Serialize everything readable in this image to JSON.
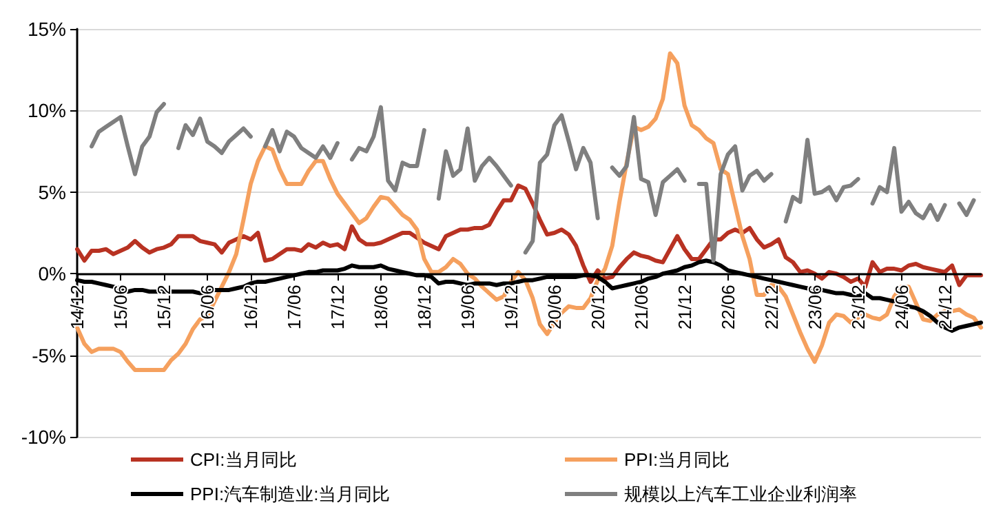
{
  "chart_data": {
    "type": "line",
    "categories": [
      "14/12",
      null,
      null,
      null,
      null,
      null,
      "15/06",
      null,
      null,
      null,
      null,
      null,
      "15/12",
      null,
      null,
      null,
      null,
      null,
      "16/06",
      null,
      null,
      null,
      null,
      null,
      "16/12",
      null,
      null,
      null,
      null,
      null,
      "17/06",
      null,
      null,
      null,
      null,
      null,
      "17/12",
      null,
      null,
      null,
      null,
      null,
      "18/06",
      null,
      null,
      null,
      null,
      null,
      "18/12",
      null,
      null,
      null,
      null,
      null,
      "19/06",
      null,
      null,
      null,
      null,
      null,
      "19/12",
      null,
      null,
      null,
      null,
      null,
      "20/06",
      null,
      null,
      null,
      null,
      null,
      "20/12",
      null,
      null,
      null,
      null,
      null,
      "21/06",
      null,
      null,
      null,
      null,
      null,
      "21/12",
      null,
      null,
      null,
      null,
      null,
      "22/06",
      null,
      null,
      null,
      null,
      null,
      "22/12",
      null,
      null,
      null,
      null,
      null,
      "23/06",
      null,
      null,
      null,
      null,
      null,
      "23/12",
      null,
      null,
      null,
      null,
      null,
      "24/06",
      null,
      null,
      null,
      null,
      null,
      "24/12",
      null,
      null,
      null,
      null,
      null
    ],
    "series": [
      {
        "name": "CPI:当月同比",
        "color": "#b83222",
        "values": [
          1.5,
          0.8,
          1.4,
          1.4,
          1.5,
          1.2,
          1.4,
          1.6,
          2.0,
          1.6,
          1.3,
          1.5,
          1.6,
          1.8,
          2.3,
          2.3,
          2.3,
          2.0,
          1.9,
          1.8,
          1.3,
          1.9,
          2.1,
          2.3,
          2.1,
          2.5,
          0.8,
          0.9,
          1.2,
          1.5,
          1.5,
          1.4,
          1.8,
          1.6,
          1.9,
          1.7,
          1.8,
          1.5,
          2.9,
          2.1,
          1.8,
          1.8,
          1.9,
          2.1,
          2.3,
          2.5,
          2.5,
          2.2,
          1.9,
          1.7,
          1.5,
          2.3,
          2.5,
          2.7,
          2.7,
          2.8,
          2.8,
          3.0,
          3.8,
          4.5,
          4.5,
          5.4,
          5.2,
          4.3,
          3.3,
          2.4,
          2.5,
          2.7,
          2.4,
          1.7,
          0.5,
          -0.5,
          0.2,
          -0.3,
          -0.2,
          0.4,
          0.9,
          1.3,
          1.1,
          1.0,
          0.8,
          0.7,
          1.5,
          2.3,
          1.5,
          0.9,
          0.9,
          1.5,
          2.1,
          2.1,
          2.5,
          2.7,
          2.5,
          2.8,
          2.1,
          1.6,
          1.8,
          2.1,
          1.0,
          0.7,
          0.1,
          0.2,
          0.0,
          -0.3,
          0.1,
          0.0,
          -0.2,
          -0.5,
          -0.3,
          -0.8,
          0.7,
          0.1,
          0.3,
          0.3,
          0.2,
          0.5,
          0.6,
          0.4,
          0.3,
          0.2,
          0.1,
          0.5,
          -0.7,
          -0.1,
          -0.1,
          -0.1
        ]
      },
      {
        "name": "PPI:当月同比",
        "color": "#f5a05e",
        "values": [
          -3.3,
          -4.3,
          -4.8,
          -4.6,
          -4.6,
          -4.6,
          -4.8,
          -5.4,
          -5.9,
          -5.9,
          -5.9,
          -5.9,
          -5.9,
          -5.3,
          -4.9,
          -4.3,
          -3.4,
          -2.8,
          -2.6,
          -1.7,
          -0.8,
          0.1,
          1.2,
          3.3,
          5.5,
          6.9,
          7.8,
          7.6,
          6.4,
          5.5,
          5.5,
          5.5,
          6.3,
          6.9,
          6.9,
          5.8,
          4.9,
          4.3,
          3.7,
          3.1,
          3.4,
          4.1,
          4.7,
          4.6,
          4.1,
          3.6,
          3.3,
          2.7,
          0.9,
          0.1,
          0.1,
          0.4,
          0.9,
          0.6,
          0.0,
          -0.3,
          -0.8,
          -1.2,
          -1.6,
          -1.4,
          -0.5,
          0.1,
          -0.4,
          -1.5,
          -3.1,
          -3.7,
          -3.0,
          -2.4,
          -2.0,
          -2.1,
          -2.1,
          -1.5,
          -0.4,
          0.3,
          1.7,
          4.4,
          6.8,
          9.0,
          8.8,
          9.0,
          9.5,
          10.7,
          13.5,
          12.9,
          10.3,
          9.1,
          8.8,
          8.3,
          8.0,
          6.4,
          6.1,
          4.2,
          2.3,
          0.9,
          -1.3,
          -1.3,
          -0.7,
          -0.8,
          -1.4,
          -2.5,
          -3.6,
          -4.6,
          -5.4,
          -4.4,
          -3.0,
          -2.5,
          -2.6,
          -3.0,
          -2.7,
          -2.5,
          -2.7,
          -2.8,
          -2.5,
          -1.4,
          -0.8,
          -0.8,
          -1.8,
          -2.8,
          -2.9,
          -2.5,
          -2.3,
          -2.3,
          -2.2,
          -2.5,
          -2.7,
          -3.3
        ]
      },
      {
        "name": "PPI:汽车制造业:当月同比",
        "color": "#000000",
        "values": [
          -0.4,
          -0.5,
          -0.5,
          -0.6,
          -0.7,
          -0.8,
          -0.9,
          -1.1,
          -1.0,
          -1.0,
          -1.1,
          -1.1,
          -1.1,
          -1.1,
          -1.1,
          -1.1,
          -1.1,
          -1.2,
          -1.1,
          -1.0,
          -1.0,
          -1.0,
          -0.9,
          -0.8,
          -0.6,
          -0.5,
          -0.5,
          -0.4,
          -0.3,
          -0.2,
          -0.1,
          0.0,
          0.1,
          0.1,
          0.2,
          0.2,
          0.2,
          0.3,
          0.5,
          0.4,
          0.4,
          0.4,
          0.5,
          0.3,
          0.2,
          0.1,
          0.0,
          -0.1,
          -0.1,
          -0.2,
          -0.6,
          -0.5,
          -0.5,
          -0.6,
          -0.7,
          -0.6,
          -0.6,
          -0.6,
          -0.7,
          -0.6,
          -0.6,
          -0.5,
          -0.4,
          -0.4,
          -0.3,
          -0.2,
          -0.2,
          -0.2,
          -0.2,
          -0.2,
          -0.1,
          -0.1,
          -0.2,
          -0.5,
          -0.9,
          -0.8,
          -0.7,
          -0.6,
          -0.5,
          -0.3,
          -0.2,
          0.0,
          0.1,
          0.2,
          0.4,
          0.5,
          0.7,
          0.8,
          0.7,
          0.5,
          0.2,
          0.1,
          0.0,
          -0.1,
          -0.2,
          -0.3,
          -0.4,
          -0.5,
          -0.6,
          -0.7,
          -0.8,
          -0.9,
          -0.9,
          -1.0,
          -1.1,
          -1.2,
          -1.2,
          -1.3,
          -1.4,
          -1.2,
          -1.5,
          -1.5,
          -1.6,
          -1.7,
          -1.8,
          -2.0,
          -2.1,
          -2.3,
          -2.6,
          -3.0,
          -3.3,
          -3.5,
          -3.3,
          -3.2,
          -3.1,
          -3.0
        ]
      },
      {
        "name": "规模以上汽车工业企业利润率",
        "color": "#7f7f7f",
        "values": [
          null,
          null,
          7.8,
          8.7,
          9.0,
          9.3,
          9.6,
          7.8,
          6.1,
          7.8,
          8.4,
          9.9,
          10.4,
          null,
          7.7,
          9.1,
          8.5,
          9.5,
          8.1,
          7.8,
          7.4,
          8.1,
          8.5,
          8.9,
          8.4,
          null,
          7.8,
          8.8,
          7.5,
          8.7,
          8.4,
          7.7,
          7.4,
          7.1,
          7.8,
          7.1,
          8.0,
          null,
          7.0,
          7.7,
          7.5,
          8.4,
          10.2,
          5.7,
          5.1,
          6.8,
          6.6,
          6.6,
          8.8,
          null,
          4.6,
          7.5,
          6.0,
          6.4,
          8.9,
          5.7,
          6.6,
          7.1,
          6.6,
          6.0,
          5.4,
          null,
          1.3,
          2.0,
          6.8,
          7.3,
          9.1,
          9.7,
          8.1,
          6.4,
          7.7,
          6.8,
          3.4,
          null,
          6.5,
          6.0,
          6.6,
          9.6,
          5.8,
          5.6,
          3.6,
          5.6,
          6.0,
          6.4,
          5.7,
          null,
          5.5,
          5.5,
          0.8,
          6.1,
          7.3,
          7.8,
          5.1,
          6.0,
          6.3,
          5.7,
          6.1,
          null,
          3.2,
          4.7,
          4.4,
          8.2,
          4.9,
          5.0,
          5.3,
          4.5,
          5.3,
          5.4,
          5.8,
          null,
          4.3,
          5.3,
          5.0,
          7.7,
          3.8,
          4.4,
          3.7,
          3.4,
          4.2,
          3.3,
          4.2,
          null,
          4.3,
          3.6,
          4.5,
          null
        ]
      }
    ],
    "ylim": [
      -10,
      15
    ],
    "yticks": [
      {
        "value": -10,
        "label": "-10%"
      },
      {
        "value": -5,
        "label": "-5%"
      },
      {
        "value": 0,
        "label": "0%"
      },
      {
        "value": 5,
        "label": "5%"
      },
      {
        "value": 10,
        "label": "10%"
      },
      {
        "value": 15,
        "label": "15%"
      }
    ],
    "grid": "y",
    "legend": "bottom",
    "marker": "none",
    "line_style": "solid"
  }
}
